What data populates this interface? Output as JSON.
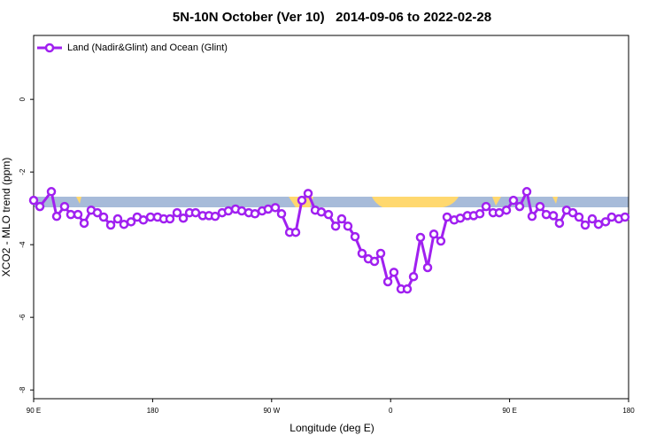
{
  "chart_data": {
    "type": "line",
    "title": "5N-10N October (Ver 10)   2014-09-06 to 2022-02-28",
    "x_label": "Longitude (deg E)",
    "y_label": "XCO2 - MLO trend (ppm)",
    "xlim": [
      90,
      540
    ],
    "xticks": [
      {
        "value": 90,
        "label": "90 E"
      },
      {
        "value": 180,
        "label": "180"
      },
      {
        "value": 270,
        "label": "90 W"
      },
      {
        "value": 360,
        "label": "0"
      },
      {
        "value": 450,
        "label": "90 E"
      },
      {
        "value": 540,
        "label": "180"
      }
    ],
    "ylim": [
      -8.24,
      1.76
    ],
    "yticks": [
      0,
      -2,
      -4,
      -6,
      -8
    ],
    "legend": "top-left",
    "x": [
      90,
      94.7,
      103.4,
      107.4,
      113.4,
      118.1,
      123.5,
      128.2,
      133.5,
      138.2,
      142.9,
      148.3,
      153.6,
      158.3,
      163.7,
      168.3,
      173,
      178.4,
      183.7,
      188.4,
      193.1,
      198.5,
      203.2,
      207.9,
      212.5,
      217.9,
      222.6,
      227.3,
      232.6,
      237.3,
      242.7,
      247.4,
      252.7,
      257.4,
      262.8,
      267.4,
      272.8,
      277.5,
      283.6,
      288.2,
      292.9,
      297.6,
      303,
      307.6,
      313,
      318.4,
      323,
      327.7,
      333.1,
      338.4,
      343.1,
      347.8,
      352.5,
      357.9,
      362.5,
      367.9,
      372.6,
      377.3,
      382.6,
      388,
      392.7,
      398,
      402.7,
      408.1,
      412.7,
      418.1,
      422.8,
      427.5,
      432.2,
      437.5,
      442.2,
      447.6,
      452.9,
      457.6,
      463,
      467,
      473,
      477.7,
      483.1,
      487.7,
      493.1,
      497.8,
      502.5,
      507.2,
      512.5,
      517.2,
      522.6,
      527.2,
      532.6,
      537.3
    ],
    "series": [
      {
        "name": "Land (Nadir&Glint) and Ocean (Glint)",
        "color": "#a020f0",
        "values": [
          -2.78,
          -2.95,
          -2.54,
          -3.22,
          -2.95,
          -3.17,
          -3.17,
          -3.41,
          -3.05,
          -3.12,
          -3.24,
          -3.46,
          -3.29,
          -3.44,
          -3.37,
          -3.24,
          -3.32,
          -3.24,
          -3.24,
          -3.29,
          -3.29,
          -3.12,
          -3.27,
          -3.12,
          -3.12,
          -3.2,
          -3.2,
          -3.22,
          -3.12,
          -3.07,
          -3.02,
          -3.07,
          -3.12,
          -3.15,
          -3.07,
          -3.02,
          -2.98,
          -3.15,
          -3.66,
          -3.66,
          -2.78,
          -2.59,
          -3.05,
          -3.1,
          -3.17,
          -3.49,
          -3.29,
          -3.49,
          -3.78,
          -4.24,
          -4.39,
          -4.46,
          -4.24,
          -5.02,
          -4.76,
          -5.22,
          -5.22,
          -4.88,
          -3.8,
          -4.63,
          -3.71,
          -3.9,
          -3.24,
          -3.32,
          -3.27,
          -3.2,
          -3.2,
          -3.15,
          -2.95,
          -3.12,
          -3.12,
          -3.05,
          -2.78,
          -2.95,
          -2.54,
          -3.22,
          -2.95,
          -3.17,
          -3.2,
          -3.41,
          -3.05,
          -3.12,
          -3.24,
          -3.46,
          -3.29,
          -3.44,
          -3.37,
          -3.24,
          -3.29,
          -3.24
        ]
      }
    ]
  }
}
